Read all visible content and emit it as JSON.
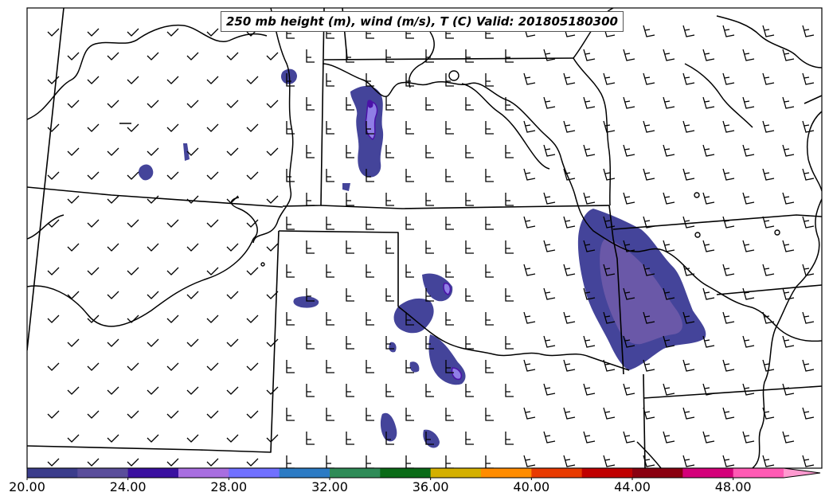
{
  "title": "250 mb height (m), wind (m/s), T (C) Valid: 201805180300",
  "colorbar": {
    "labels": [
      "20.00",
      "24.00",
      "28.00",
      "32.00",
      "36.00",
      "40.00",
      "44.00",
      "48.00"
    ],
    "colors": [
      "#3b3d8c",
      "#5a4e9b",
      "#3a10a0",
      "#a86ee0",
      "#7070ff",
      "#2c7bc4",
      "#2e8b57",
      "#0a6b17",
      "#d4b000",
      "#ff8c00",
      "#e83a00",
      "#c00000",
      "#8a0010",
      "#d4007a",
      "#ff5ab4"
    ],
    "extend_color": "#ff9ad0"
  },
  "colors": {
    "contour_main": "#44449a",
    "contour_inner": "#6a58a8",
    "contour_core": "#8f7ee6",
    "contour_edge": "#4b12a8",
    "borders": "#000000"
  }
}
